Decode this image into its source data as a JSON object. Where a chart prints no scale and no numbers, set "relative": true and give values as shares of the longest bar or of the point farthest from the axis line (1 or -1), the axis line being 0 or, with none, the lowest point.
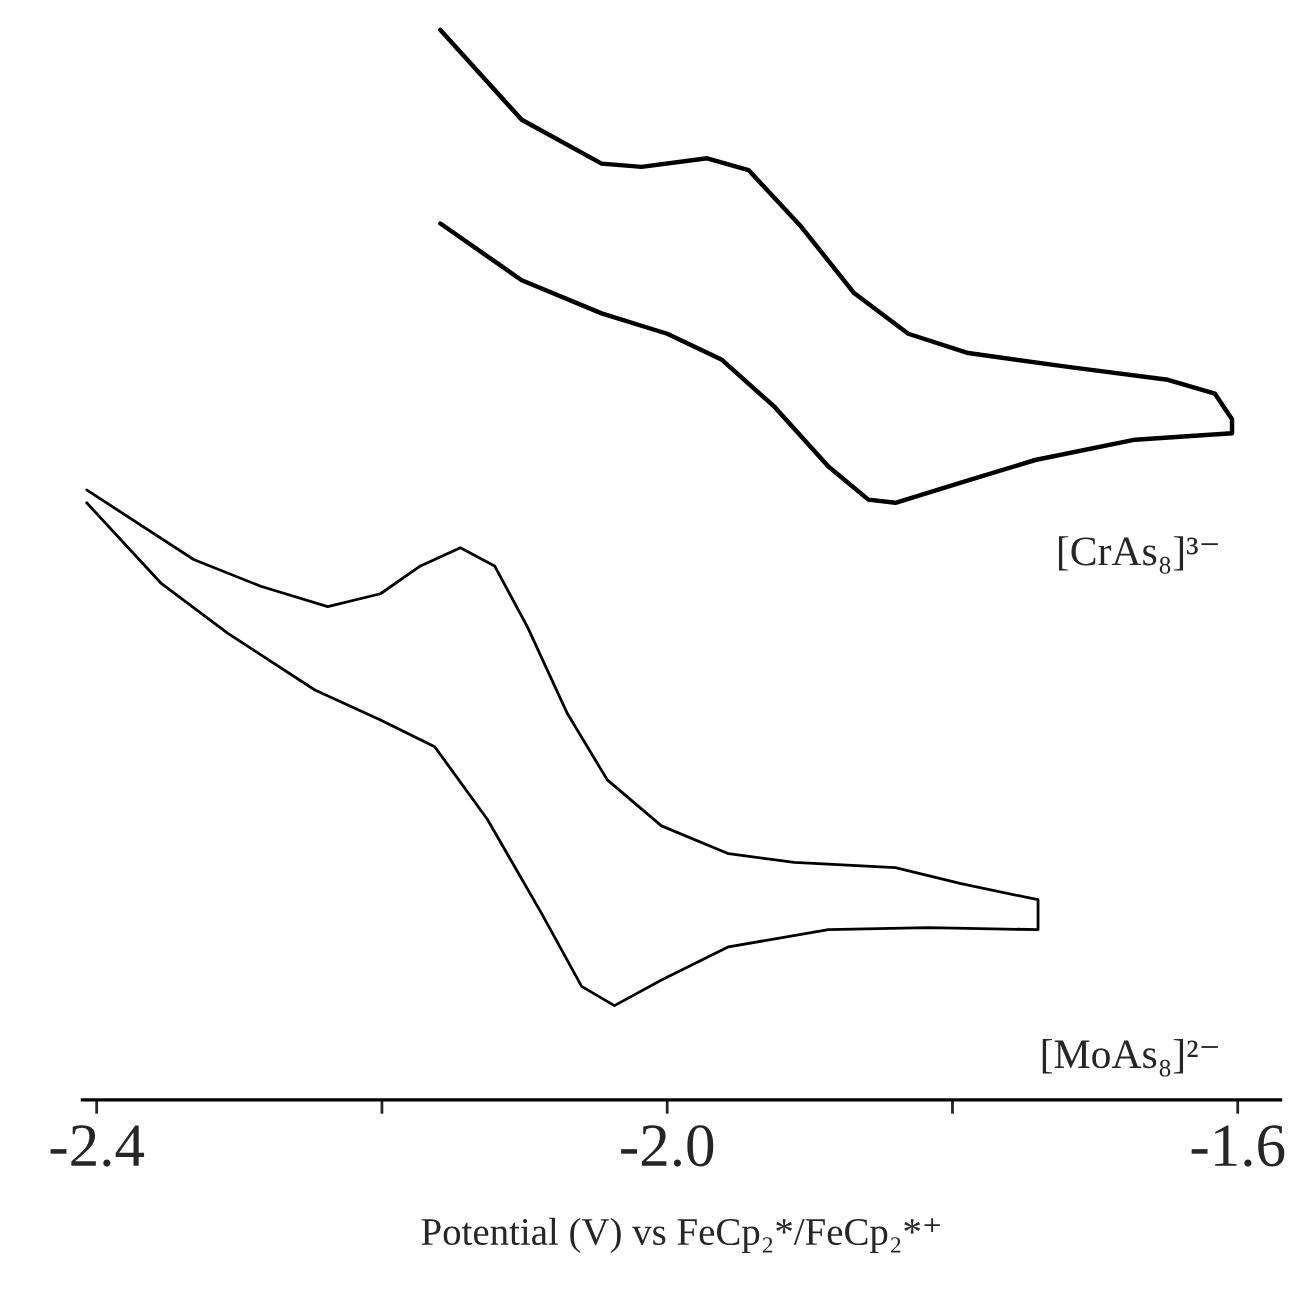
{
  "chart_data": {
    "type": "line",
    "relative": true,
    "xlabel": "Potential (V) vs FeCp₂*/FeCp₂*⁺",
    "xlim": [
      -2.41,
      -1.57
    ],
    "xticks": [
      -2.4,
      {
        "value": -2.2,
        "label": null
      },
      {
        "value": -2.0,
        "label": "-2.0"
      },
      {
        "value": -1.8,
        "label": null
      },
      -1.6
    ],
    "tick_labels": "x",
    "grid": false,
    "legend": false,
    "marker": "none",
    "line_style": "solid",
    "series": [
      {
        "name": "[CrAs₈]³⁻",
        "color": "#000000",
        "x": [
          -2.159,
          -2.102,
          -2.046,
          -2.018,
          -1.972,
          -1.943,
          -1.906,
          -1.869,
          -1.831,
          -1.789,
          -1.719,
          -1.649,
          -1.616,
          -1.604,
          -1.604,
          -1.672,
          -1.742,
          -1.789,
          -1.84,
          -1.859,
          -1.887,
          -1.925,
          -1.962,
          -2.0,
          -2.046,
          -2.102,
          -2.159
        ],
        "values": [
          1.0,
          0.916,
          0.875,
          0.872,
          0.88,
          0.869,
          0.816,
          0.754,
          0.716,
          0.698,
          0.685,
          0.673,
          0.66,
          0.636,
          0.623,
          0.617,
          0.598,
          0.579,
          0.558,
          0.561,
          0.592,
          0.648,
          0.692,
          0.716,
          0.735,
          0.766,
          0.819
        ]
      },
      {
        "name": "[MoAs₈]²⁻",
        "color": "#000000",
        "x": [
          -2.407,
          -2.332,
          -2.285,
          -2.238,
          -2.201,
          -2.173,
          -2.145,
          -2.121,
          -2.098,
          -2.07,
          -2.042,
          -2.004,
          -1.957,
          -1.911,
          -1.84,
          -1.794,
          -1.74,
          -1.74,
          -1.817,
          -1.887,
          -1.957,
          -2.004,
          -2.037,
          -2.06,
          -2.088,
          -2.126,
          -2.163,
          -2.201,
          -2.247,
          -2.308,
          -2.355,
          -2.407
        ],
        "values": [
          0.57,
          0.505,
          0.48,
          0.461,
          0.473,
          0.499,
          0.516,
          0.499,
          0.442,
          0.361,
          0.299,
          0.256,
          0.23,
          0.222,
          0.217,
          0.202,
          0.187,
          0.159,
          0.161,
          0.159,
          0.143,
          0.112,
          0.088,
          0.106,
          0.174,
          0.262,
          0.33,
          0.355,
          0.383,
          0.436,
          0.483,
          0.558
        ]
      }
    ]
  }
}
